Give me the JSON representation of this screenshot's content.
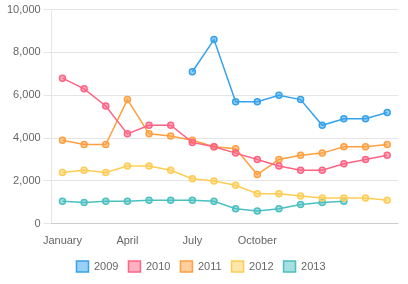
{
  "chart_data": {
    "type": "line",
    "series": [
      {
        "name": "2009",
        "x": [
          6,
          7,
          8,
          9,
          10,
          11,
          12,
          13,
          14,
          15
        ],
        "values": [
          7100,
          8600,
          5700,
          5700,
          6000,
          5800,
          4600,
          4900,
          4900,
          5200
        ]
      },
      {
        "name": "2010",
        "x": [
          0,
          1,
          2,
          3,
          4,
          5,
          6,
          7,
          8,
          9,
          10,
          11,
          12,
          13,
          14,
          15
        ],
        "values": [
          6800,
          6300,
          5500,
          4200,
          4600,
          4600,
          3800,
          3600,
          3300,
          3000,
          2700,
          2500,
          2500,
          2800,
          3000,
          3200
        ]
      },
      {
        "name": "2011",
        "x": [
          0,
          1,
          2,
          3,
          4,
          5,
          6,
          7,
          8,
          9,
          10,
          11,
          12,
          13,
          14,
          15
        ],
        "values": [
          3900,
          3700,
          3700,
          5800,
          4200,
          4100,
          3900,
          3600,
          3500,
          2300,
          3000,
          3200,
          3300,
          3600,
          3600,
          3700
        ]
      },
      {
        "name": "2012",
        "x": [
          0,
          1,
          2,
          3,
          4,
          5,
          6,
          7,
          8,
          9,
          10,
          11,
          12,
          13,
          14,
          15
        ],
        "values": [
          2400,
          2500,
          2400,
          2700,
          2700,
          2500,
          2100,
          2000,
          1800,
          1400,
          1400,
          1300,
          1200,
          1200,
          1200,
          1100
        ]
      },
      {
        "name": "2013",
        "x": [
          0,
          1,
          2,
          3,
          4,
          5,
          6,
          7,
          8,
          9,
          10,
          11,
          12,
          13
        ],
        "values": [
          1050,
          1000,
          1050,
          1050,
          1100,
          1100,
          1100,
          1050,
          700,
          600,
          700,
          900,
          1000,
          1050
        ]
      }
    ],
    "xlim": [
      -0.5,
      15.5
    ],
    "xticks": [
      {
        "value": 0,
        "label": "January"
      },
      {
        "value": 3,
        "label": "April"
      },
      {
        "value": 6,
        "label": "July"
      },
      {
        "value": 9,
        "label": "October"
      }
    ],
    "ylim": [
      0,
      10000
    ],
    "yticks": [
      0,
      {
        "value": 2000,
        "label": "2,000"
      },
      {
        "value": 4000,
        "label": "4,000"
      },
      {
        "value": 6000,
        "label": "6,000"
      },
      {
        "value": 8000,
        "label": "8,000"
      },
      {
        "value": 10000,
        "label": "10,000"
      }
    ],
    "grid": "y",
    "legend": "bottom",
    "marker": "circle"
  }
}
